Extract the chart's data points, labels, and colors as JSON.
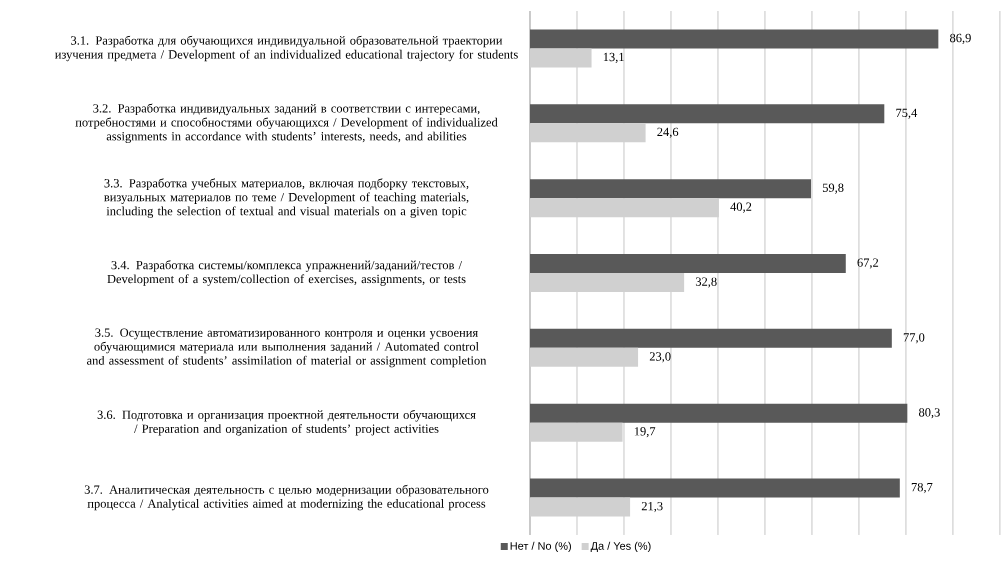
{
  "chart_data": {
    "type": "bar",
    "orientation": "horizontal",
    "categories": [
      "3.1. Разработка для обучающихся индивидуальной образовательной траектории изучения предмета / Development of an individualized educational trajectory for students",
      "3.2. Разработка индивидуальных заданий в соответствии с интересами, потребностями и способностями обучающихся / Development of individualized assignments in accordance with students’ interests, needs, and abilities",
      "3.3. Разработка учебных материалов, включая подборку текстовых, визуальных материалов по теме / Development of teaching materials, including the selection of textual and visual materials on a given topic",
      "3.4. Разработка системы/комплекса упражнений/заданий/тестов / Development of a system/collection of exercises, assignments, or tests",
      "3.5. Осуществление автоматизированного контроля и оценки усвоения обучающимися материала или выполнения заданий / Automated control and assessment of students’ assimilation of material or assignment completion",
      "3.6. Подготовка и организация проектной деятельности обучающихся / Preparation and organization of students’ project activities",
      "3.7. Аналитическая деятельность с целью модернизации образовательного процесса / Analytical activities aimed at modernizing the educational process"
    ],
    "series": [
      {
        "name": "Нет / No (%)",
        "color": "#595959",
        "values": [
          86.9,
          75.4,
          59.8,
          67.2,
          77.0,
          80.3,
          78.7
        ],
        "value_labels": [
          "86,9",
          "75,4",
          "59,8",
          "67,2",
          "77,0",
          "80,3",
          "78,7"
        ]
      },
      {
        "name": "Да / Yes (%)",
        "color": "#d0d0d0",
        "values": [
          13.1,
          24.6,
          40.2,
          32.8,
          23.0,
          19.7,
          21.3
        ],
        "value_labels": [
          "13,1",
          "24,6",
          "40,2",
          "32,8",
          "23,0",
          "19,7",
          "21,3"
        ]
      }
    ],
    "grid": "x",
    "legend": "bottom",
    "tick_labels": "y"
  }
}
